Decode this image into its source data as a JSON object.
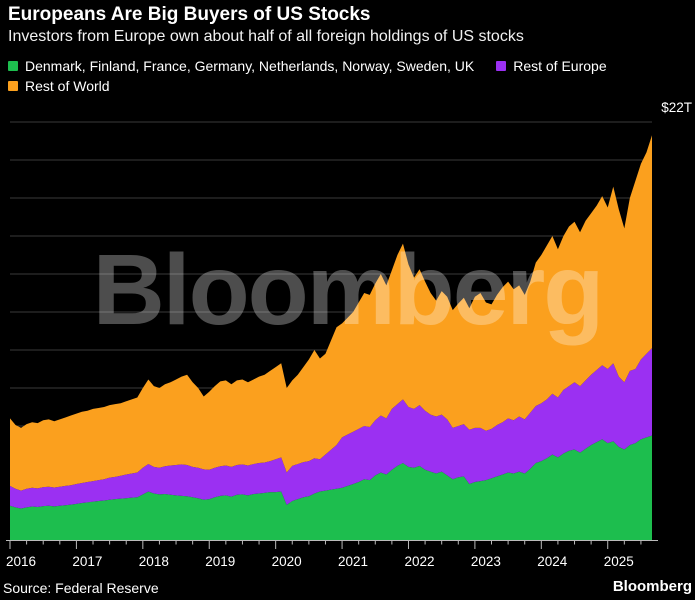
{
  "header": {
    "title": "Europeans Are Big Buyers of US Stocks",
    "subtitle": "Investors from Europe own about half of all foreign holdings of US stocks"
  },
  "legend": [
    {
      "label": "Denmark, Finland, France, Germany, Netherlands, Norway, Sweden, UK",
      "color": "#1DBE4E"
    },
    {
      "label": "Rest of Europe",
      "color": "#9B30F2"
    },
    {
      "label": "Rest of World",
      "color": "#FBA01E"
    }
  ],
  "watermark": "Bloomberg",
  "footer": {
    "source": "Source: Federal Reserve",
    "brand": "Bloomberg"
  },
  "chart_data": {
    "type": "area",
    "stacked": true,
    "frequency": "monthly",
    "x_start": "2016-01",
    "x_end": "2025-09",
    "x_tick_labels": [
      "2016",
      "2017",
      "2018",
      "2019",
      "2020",
      "2021",
      "2022",
      "2023",
      "2024",
      "2025"
    ],
    "ylim": [
      0,
      22
    ],
    "y_ticks": [
      0,
      2,
      4,
      6,
      8,
      10,
      12,
      14,
      16,
      18,
      20,
      22
    ],
    "y_top_label": "$22T",
    "unit": "trillion USD",
    "grid": true,
    "legend_position": "top",
    "series": [
      {
        "name": "Denmark, Finland, France, Germany, Netherlands, Norway, Sweden, UK",
        "color": "#1DBE4E",
        "values": [
          1.8,
          1.72,
          1.66,
          1.72,
          1.76,
          1.74,
          1.78,
          1.8,
          1.77,
          1.8,
          1.83,
          1.86,
          1.9,
          1.95,
          1.98,
          2.02,
          2.05,
          2.08,
          2.12,
          2.15,
          2.18,
          2.2,
          2.23,
          2.25,
          2.4,
          2.55,
          2.45,
          2.4,
          2.42,
          2.38,
          2.35,
          2.32,
          2.3,
          2.25,
          2.2,
          2.12,
          2.15,
          2.25,
          2.32,
          2.35,
          2.28,
          2.38,
          2.4,
          2.35,
          2.42,
          2.45,
          2.48,
          2.52,
          2.52,
          2.55,
          1.85,
          2.05,
          2.15,
          2.25,
          2.3,
          2.45,
          2.55,
          2.6,
          2.65,
          2.7,
          2.75,
          2.85,
          2.95,
          3.05,
          3.2,
          3.15,
          3.4,
          3.55,
          3.45,
          3.7,
          3.9,
          4.05,
          3.85,
          3.8,
          3.9,
          3.7,
          3.6,
          3.5,
          3.6,
          3.4,
          3.2,
          3.3,
          3.35,
          2.95,
          3.05,
          3.1,
          3.15,
          3.25,
          3.35,
          3.45,
          3.55,
          3.5,
          3.6,
          3.5,
          3.75,
          4.05,
          4.15,
          4.3,
          4.5,
          4.35,
          4.55,
          4.7,
          4.76,
          4.6,
          4.8,
          5.0,
          5.15,
          5.3,
          5.1,
          5.2,
          4.9,
          4.76,
          5.0,
          5.1,
          5.3,
          5.4,
          5.5
        ]
      },
      {
        "name": "Rest of Europe",
        "color": "#9B30F2",
        "values": [
          1.05,
          0.98,
          0.94,
          0.98,
          0.99,
          0.98,
          1.0,
          1.0,
          0.99,
          1.0,
          1.02,
          1.02,
          1.05,
          1.05,
          1.07,
          1.08,
          1.1,
          1.12,
          1.16,
          1.17,
          1.2,
          1.25,
          1.27,
          1.3,
          1.4,
          1.45,
          1.4,
          1.4,
          1.46,
          1.54,
          1.6,
          1.66,
          1.65,
          1.6,
          1.6,
          1.6,
          1.55,
          1.55,
          1.56,
          1.57,
          1.57,
          1.57,
          1.58,
          1.57,
          1.58,
          1.6,
          1.6,
          1.63,
          1.73,
          1.8,
          1.7,
          1.85,
          1.85,
          1.85,
          1.85,
          1.85,
          1.7,
          1.9,
          2.1,
          2.3,
          2.65,
          2.7,
          2.75,
          2.8,
          2.8,
          2.8,
          2.9,
          3.0,
          2.95,
          3.2,
          3.25,
          3.35,
          3.15,
          3.1,
          3.2,
          3.1,
          3.0,
          3.0,
          3.0,
          2.95,
          2.7,
          2.7,
          2.75,
          2.85,
          2.85,
          2.8,
          2.6,
          2.6,
          2.7,
          2.75,
          2.85,
          2.8,
          2.9,
          2.85,
          2.95,
          3.0,
          3.05,
          3.1,
          3.2,
          3.15,
          3.35,
          3.4,
          3.54,
          3.5,
          3.6,
          3.7,
          3.8,
          3.9,
          3.9,
          4.1,
          3.7,
          3.54,
          3.9,
          3.9,
          4.2,
          4.4,
          4.6
        ]
      },
      {
        "name": "Rest of World",
        "color": "#FBA01E",
        "values": [
          3.55,
          3.35,
          3.3,
          3.4,
          3.45,
          3.43,
          3.52,
          3.55,
          3.49,
          3.55,
          3.6,
          3.67,
          3.7,
          3.75,
          3.75,
          3.8,
          3.8,
          3.8,
          3.82,
          3.83,
          3.82,
          3.85,
          3.9,
          3.95,
          4.2,
          4.45,
          4.25,
          4.2,
          4.32,
          4.38,
          4.5,
          4.62,
          4.75,
          4.45,
          4.2,
          3.83,
          4.1,
          4.3,
          4.47,
          4.48,
          4.35,
          4.45,
          4.47,
          4.38,
          4.45,
          4.55,
          4.62,
          4.75,
          4.85,
          4.95,
          4.45,
          4.5,
          4.7,
          5.0,
          5.35,
          5.7,
          5.3,
          5.3,
          5.75,
          6.2,
          6.0,
          6.15,
          6.3,
          6.65,
          7.0,
          6.95,
          7.2,
          7.45,
          7.0,
          7.3,
          7.85,
          8.2,
          7.5,
          6.9,
          7.15,
          6.8,
          6.4,
          6.1,
          6.5,
          6.45,
          6.2,
          6.45,
          6.65,
          6.4,
          6.9,
          7.1,
          6.75,
          6.55,
          6.85,
          7.1,
          7.2,
          6.9,
          6.9,
          6.55,
          6.9,
          7.55,
          7.8,
          8.1,
          8.3,
          7.8,
          8.1,
          8.4,
          8.45,
          8.1,
          8.4,
          8.5,
          8.65,
          8.9,
          8.5,
          9.3,
          8.8,
          8.1,
          9.1,
          9.9,
          10.3,
          10.6,
          11.2
        ]
      }
    ],
    "source": "Federal Reserve"
  }
}
